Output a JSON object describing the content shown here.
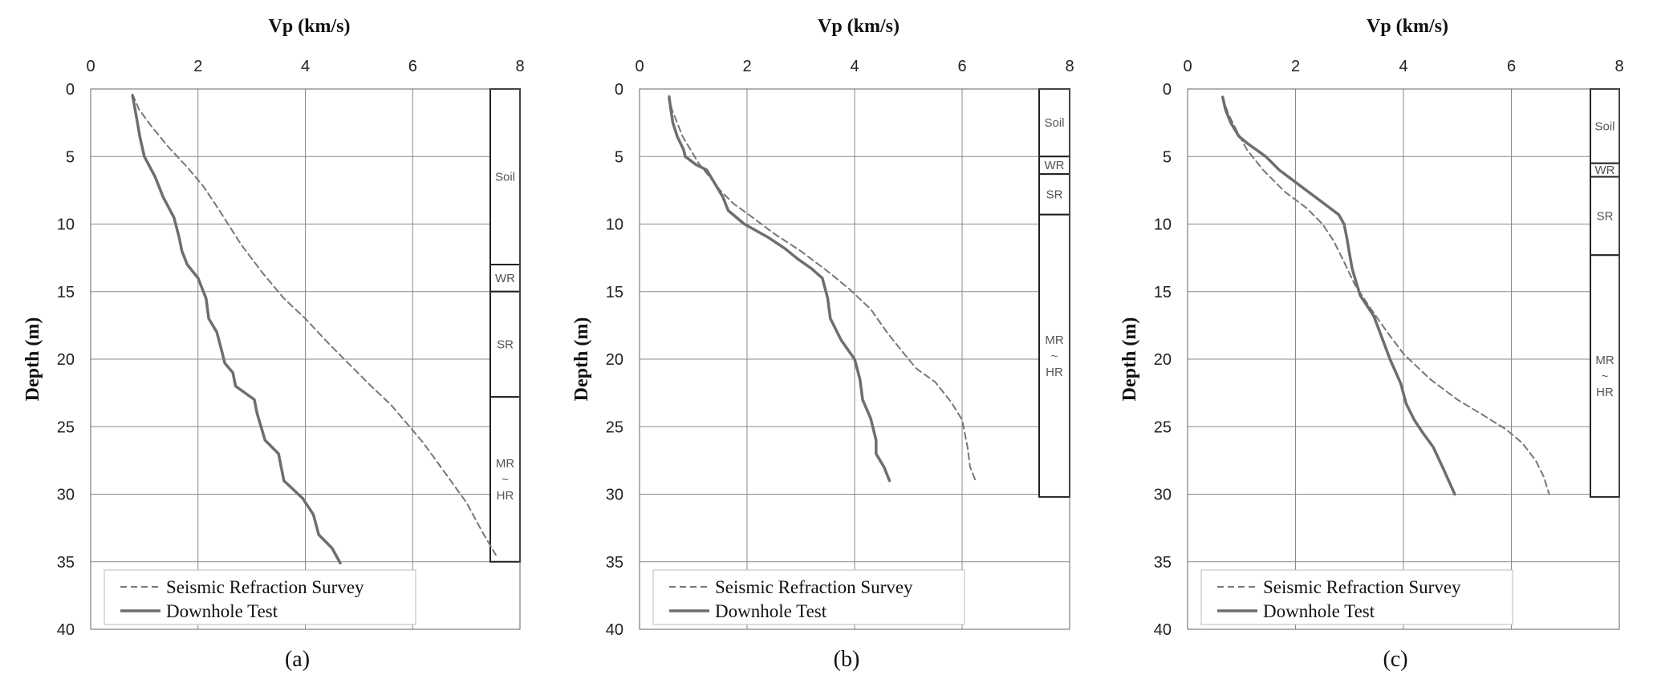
{
  "figure": {
    "legend": {
      "series_labels": [
        "Seismic Refraction Survey",
        "Downhole Test"
      ]
    }
  },
  "chart_data": [
    {
      "type": "line",
      "caption": "(a)",
      "xlabel": "Vp (km/s)",
      "ylabel": "Depth (m)",
      "xlim": [
        0,
        8
      ],
      "ylim": [
        0,
        40
      ],
      "y_inverted": true,
      "x_axis_position": "top",
      "xticks": [
        0,
        2,
        4,
        6,
        8
      ],
      "yticks": [
        0,
        5,
        10,
        15,
        20,
        25,
        30,
        35,
        40
      ],
      "grid": true,
      "legend_position": "bottom-left",
      "series": [
        {
          "name": "Seismic Refraction Survey",
          "style": "dashed",
          "color": "#777777",
          "points": [
            [
              0.78,
              0.4
            ],
            [
              0.9,
              1.5
            ],
            [
              1.1,
              2.6
            ],
            [
              1.45,
              4.3
            ],
            [
              1.8,
              5.8
            ],
            [
              2.1,
              7.2
            ],
            [
              2.4,
              9.0
            ],
            [
              2.8,
              11.5
            ],
            [
              3.2,
              13.6
            ],
            [
              3.6,
              15.5
            ],
            [
              4.0,
              17.0
            ],
            [
              4.4,
              18.7
            ],
            [
              4.8,
              20.3
            ],
            [
              5.2,
              21.9
            ],
            [
              5.6,
              23.4
            ],
            [
              5.9,
              24.8
            ],
            [
              6.2,
              26.2
            ],
            [
              6.6,
              28.4
            ],
            [
              7.0,
              30.6
            ],
            [
              7.3,
              32.8
            ],
            [
              7.55,
              34.5
            ]
          ]
        },
        {
          "name": "Downhole Test",
          "style": "solid",
          "color": "#6e6e6e",
          "points": [
            [
              0.78,
              0.5
            ],
            [
              0.85,
              2.0
            ],
            [
              0.92,
              3.6
            ],
            [
              1.0,
              5.0
            ],
            [
              1.2,
              6.5
            ],
            [
              1.35,
              8.0
            ],
            [
              1.55,
              9.5
            ],
            [
              1.65,
              11.0
            ],
            [
              1.7,
              12.0
            ],
            [
              1.8,
              13.0
            ],
            [
              2.0,
              14.0
            ],
            [
              2.15,
              15.5
            ],
            [
              2.2,
              17.0
            ],
            [
              2.35,
              18.0
            ],
            [
              2.45,
              19.5
            ],
            [
              2.5,
              20.3
            ],
            [
              2.65,
              21.0
            ],
            [
              2.7,
              22.0
            ],
            [
              3.05,
              23.0
            ],
            [
              3.1,
              24.0
            ],
            [
              3.25,
              26.0
            ],
            [
              3.5,
              27.0
            ],
            [
              3.6,
              29.0
            ],
            [
              3.95,
              30.3
            ],
            [
              4.15,
              31.5
            ],
            [
              4.25,
              33.0
            ],
            [
              4.5,
              34.0
            ],
            [
              4.65,
              35.1
            ]
          ]
        }
      ],
      "strata": [
        {
          "label": "Soil",
          "top": 0,
          "bottom": 13
        },
        {
          "label": "WR",
          "top": 13,
          "bottom": 15
        },
        {
          "label": "SR",
          "top": 15,
          "bottom": 22.8
        },
        {
          "label": "MR\n~\nHR",
          "top": 22.8,
          "bottom": 35
        }
      ]
    },
    {
      "type": "line",
      "caption": "(b)",
      "xlabel": "Vp (km/s)",
      "ylabel": "Depth (m)",
      "xlim": [
        0,
        8
      ],
      "ylim": [
        0,
        40
      ],
      "y_inverted": true,
      "x_axis_position": "top",
      "xticks": [
        0,
        2,
        4,
        6,
        8
      ],
      "yticks": [
        0,
        5,
        10,
        15,
        20,
        25,
        30,
        35,
        40
      ],
      "grid": true,
      "legend_position": "bottom-left",
      "series": [
        {
          "name": "Seismic Refraction Survey",
          "style": "dashed",
          "color": "#777777",
          "points": [
            [
              0.55,
              0.5
            ],
            [
              0.6,
              1.5
            ],
            [
              0.7,
              2.5
            ],
            [
              0.8,
              3.5
            ],
            [
              0.95,
              4.5
            ],
            [
              1.1,
              5.5
            ],
            [
              1.3,
              6.5
            ],
            [
              1.5,
              7.5
            ],
            [
              1.75,
              8.5
            ],
            [
              2.1,
              9.5
            ],
            [
              2.5,
              10.7
            ],
            [
              3.0,
              12.0
            ],
            [
              3.5,
              13.5
            ],
            [
              3.9,
              14.8
            ],
            [
              4.3,
              16.3
            ],
            [
              4.6,
              18.0
            ],
            [
              4.9,
              19.5
            ],
            [
              5.15,
              20.7
            ],
            [
              5.5,
              21.7
            ],
            [
              5.8,
              23.2
            ],
            [
              6.0,
              24.5
            ],
            [
              6.1,
              26.5
            ],
            [
              6.15,
              28.0
            ],
            [
              6.25,
              29.0
            ]
          ]
        },
        {
          "name": "Downhole Test",
          "style": "solid",
          "color": "#6e6e6e",
          "points": [
            [
              0.55,
              0.6
            ],
            [
              0.58,
              1.5
            ],
            [
              0.62,
              2.5
            ],
            [
              0.7,
              3.5
            ],
            [
              0.82,
              4.5
            ],
            [
              0.85,
              5.0
            ],
            [
              1.05,
              5.6
            ],
            [
              1.25,
              6.0
            ],
            [
              1.4,
              7.0
            ],
            [
              1.55,
              8.0
            ],
            [
              1.65,
              9.0
            ],
            [
              1.95,
              10.0
            ],
            [
              2.4,
              11.0
            ],
            [
              2.7,
              11.8
            ],
            [
              2.95,
              12.6
            ],
            [
              3.2,
              13.3
            ],
            [
              3.4,
              14.0
            ],
            [
              3.5,
              15.5
            ],
            [
              3.55,
              17.0
            ],
            [
              3.75,
              18.6
            ],
            [
              4.0,
              20.0
            ],
            [
              4.1,
              21.5
            ],
            [
              4.15,
              23.0
            ],
            [
              4.3,
              24.4
            ],
            [
              4.4,
              26.0
            ],
            [
              4.4,
              27.0
            ],
            [
              4.55,
              28.0
            ],
            [
              4.65,
              29.0
            ]
          ]
        }
      ],
      "strata": [
        {
          "label": "Soil",
          "top": 0,
          "bottom": 5
        },
        {
          "label": "WR",
          "top": 5,
          "bottom": 6.3
        },
        {
          "label": "SR",
          "top": 6.3,
          "bottom": 9.3
        },
        {
          "label": "MR\n~\nHR",
          "top": 9.3,
          "bottom": 30.2
        }
      ]
    },
    {
      "type": "line",
      "caption": "(c)",
      "xlabel": "Vp (km/s)",
      "ylabel": "Depth (m)",
      "xlim": [
        0,
        8
      ],
      "ylim": [
        0,
        40
      ],
      "y_inverted": true,
      "x_axis_position": "top",
      "xticks": [
        0,
        2,
        4,
        6,
        8
      ],
      "yticks": [
        0,
        5,
        10,
        15,
        20,
        25,
        30,
        35,
        40
      ],
      "grid": true,
      "legend_position": "bottom-left",
      "series": [
        {
          "name": "Seismic Refraction Survey",
          "style": "dashed",
          "color": "#777777",
          "points": [
            [
              0.65,
              0.6
            ],
            [
              0.75,
              1.8
            ],
            [
              0.9,
              3.0
            ],
            [
              1.1,
              4.5
            ],
            [
              1.4,
              6.0
            ],
            [
              1.8,
              7.6
            ],
            [
              2.2,
              8.8
            ],
            [
              2.5,
              10.0
            ],
            [
              2.7,
              11.2
            ],
            [
              2.9,
              12.8
            ],
            [
              3.1,
              14.5
            ],
            [
              3.4,
              16.3
            ],
            [
              3.7,
              18.0
            ],
            [
              4.0,
              19.6
            ],
            [
              4.5,
              21.5
            ],
            [
              5.0,
              23.0
            ],
            [
              5.5,
              24.2
            ],
            [
              5.9,
              25.2
            ],
            [
              6.2,
              26.2
            ],
            [
              6.45,
              27.5
            ],
            [
              6.6,
              28.7
            ],
            [
              6.7,
              30.0
            ]
          ]
        },
        {
          "name": "Downhole Test",
          "style": "solid",
          "color": "#6e6e6e",
          "points": [
            [
              0.65,
              0.6
            ],
            [
              0.7,
              1.5
            ],
            [
              0.8,
              2.5
            ],
            [
              0.95,
              3.5
            ],
            [
              1.1,
              4.0
            ],
            [
              1.45,
              5.0
            ],
            [
              1.7,
              6.0
            ],
            [
              2.1,
              7.2
            ],
            [
              2.5,
              8.4
            ],
            [
              2.8,
              9.3
            ],
            [
              2.9,
              10.0
            ],
            [
              2.95,
              11.0
            ],
            [
              3.0,
              12.2
            ],
            [
              3.05,
              13.3
            ],
            [
              3.1,
              14.0
            ],
            [
              3.2,
              15.3
            ],
            [
              3.45,
              16.8
            ],
            [
              3.6,
              18.4
            ],
            [
              3.75,
              20.0
            ],
            [
              3.95,
              21.8
            ],
            [
              4.05,
              23.3
            ],
            [
              4.2,
              24.5
            ],
            [
              4.35,
              25.4
            ],
            [
              4.55,
              26.5
            ],
            [
              4.75,
              28.2
            ],
            [
              4.95,
              30.0
            ]
          ]
        }
      ],
      "strata": [
        {
          "label": "Soil",
          "top": 0,
          "bottom": 5.5
        },
        {
          "label": "WR",
          "top": 5.5,
          "bottom": 6.5
        },
        {
          "label": "SR",
          "top": 6.5,
          "bottom": 12.3
        },
        {
          "label": "MR\n~\nHR",
          "top": 12.3,
          "bottom": 30.2
        }
      ]
    }
  ]
}
